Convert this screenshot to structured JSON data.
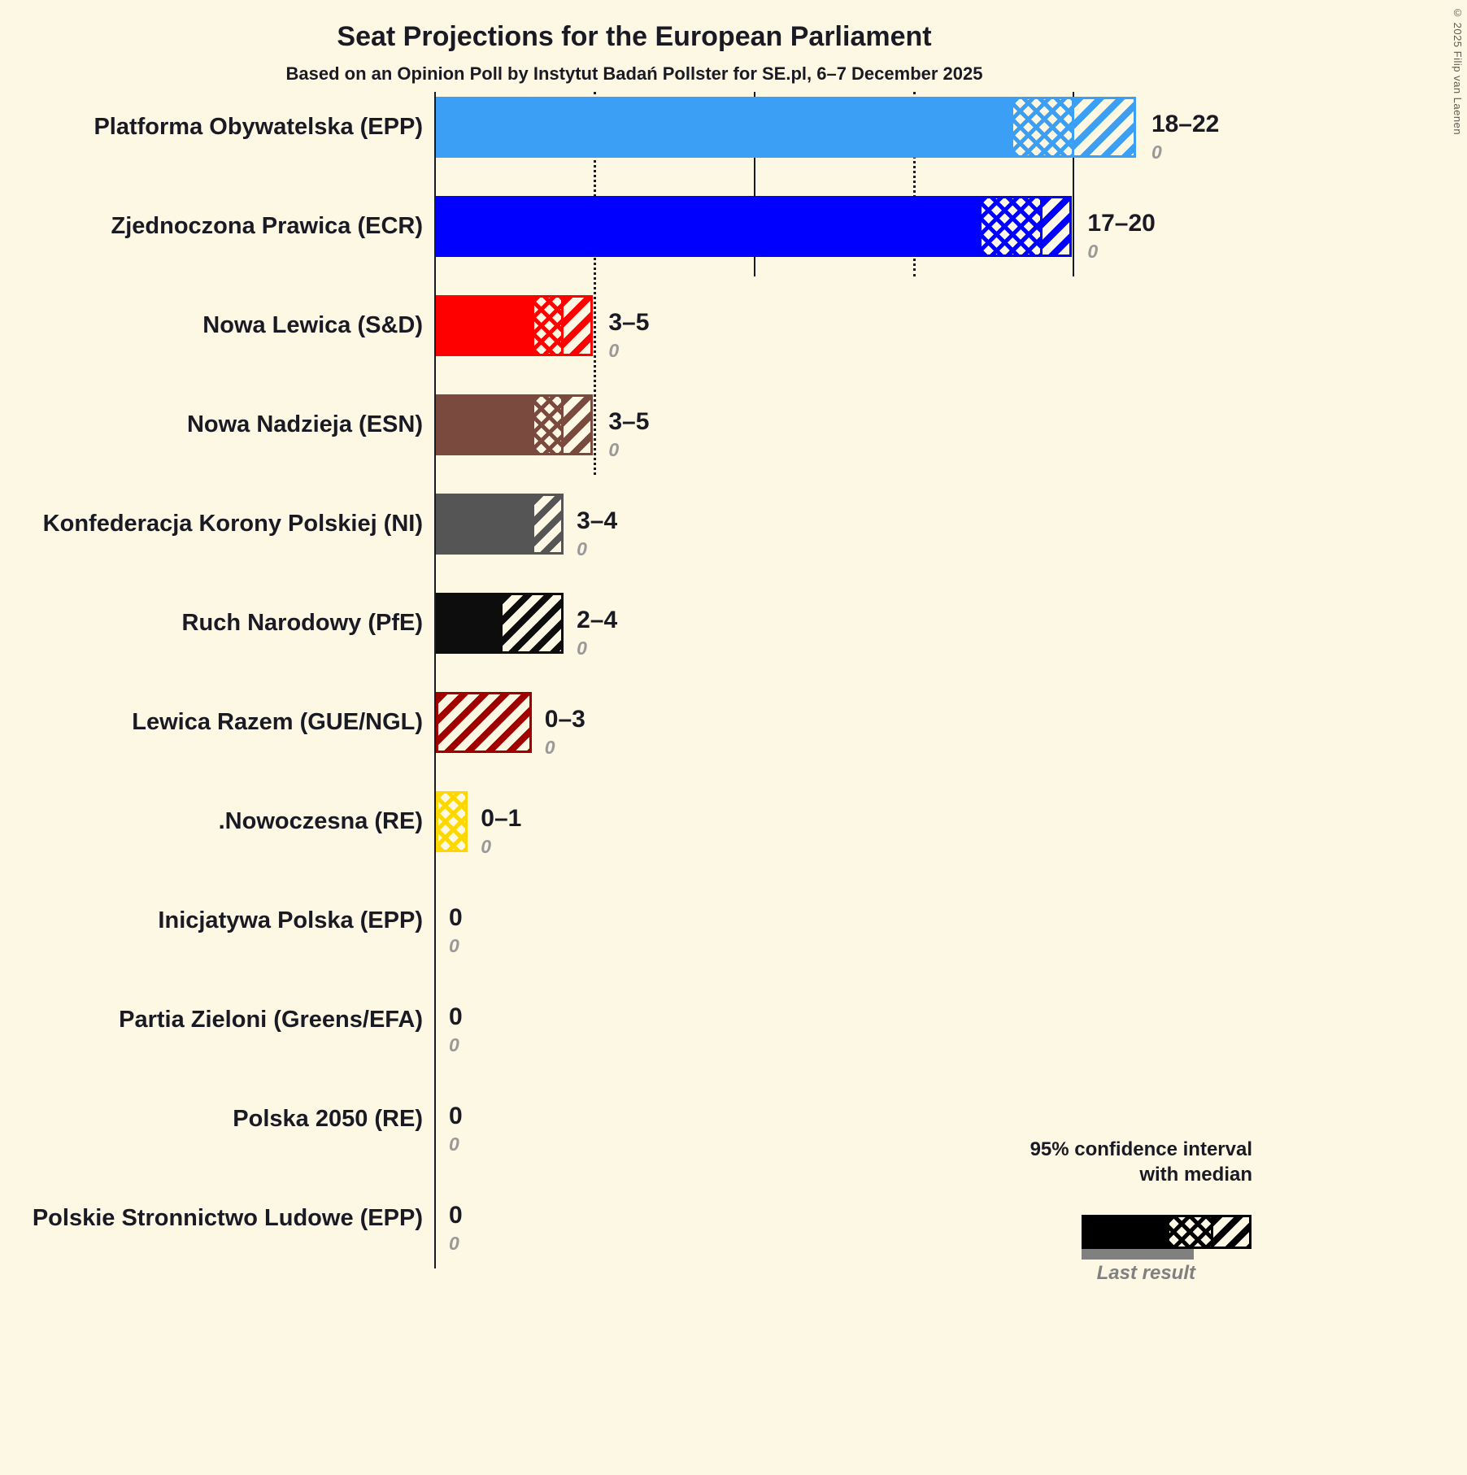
{
  "title": "Seat Projections for the European Parliament",
  "subtitle": "Based on an Opinion Poll by Instytut Badań Pollster for SE.pl, 6–7 December 2025",
  "copyright": "© 2025 Filip van Laenen",
  "colors": {
    "background": "#FDF8E3",
    "text": "#1A1A24",
    "axis": "#1A1A24",
    "last_result_text": "#999999"
  },
  "legend": {
    "line1": "95% confidence interval",
    "line2": "with median",
    "last_result_label": "Last result",
    "bar_color": "#000000",
    "last_result_color": "#808080"
  },
  "chart_data": {
    "type": "bar",
    "orientation": "horizontal",
    "unit": "seats",
    "xlim": [
      0,
      26
    ],
    "x_gridlines_solid": [
      10,
      20
    ],
    "x_gridlines_dotted": [
      5,
      15
    ],
    "parties": [
      {
        "label": "Platforma Obywatelska (EPP)",
        "ci_low": 18,
        "median": 20,
        "ci_high": 22,
        "range_text": "18–22",
        "last_result": "0",
        "color": "#3B9FF5"
      },
      {
        "label": "Zjednoczona Prawica (ECR)",
        "ci_low": 17,
        "median": 19,
        "ci_high": 20,
        "range_text": "17–20",
        "last_result": "0",
        "color": "#0000FF"
      },
      {
        "label": "Nowa Lewica (S&D)",
        "ci_low": 3,
        "median": 4,
        "ci_high": 5,
        "range_text": "3–5",
        "last_result": "0",
        "color": "#FF0000"
      },
      {
        "label": "Nowa Nadzieja (ESN)",
        "ci_low": 3,
        "median": 4,
        "ci_high": 5,
        "range_text": "3–5",
        "last_result": "0",
        "color": "#7A4A3E"
      },
      {
        "label": "Konfederacja Korony Polskiej (NI)",
        "ci_low": 3,
        "median": 3,
        "ci_high": 4,
        "range_text": "3–4",
        "last_result": "0",
        "color": "#555555"
      },
      {
        "label": "Ruch Narodowy (PfE)",
        "ci_low": 2,
        "median": 2,
        "ci_high": 4,
        "range_text": "2–4",
        "last_result": "0",
        "color": "#0D0D0D"
      },
      {
        "label": "Lewica Razem (GUE/NGL)",
        "ci_low": 0,
        "median": 0,
        "ci_high": 3,
        "range_text": "0–3",
        "last_result": "0",
        "color": "#A00000"
      },
      {
        "label": ".Nowoczesna (RE)",
        "ci_low": 0,
        "median": 1,
        "ci_high": 1,
        "range_text": "0–1",
        "last_result": "0",
        "color": "#FFD700"
      },
      {
        "label": "Inicjatywa Polska (EPP)",
        "ci_low": 0,
        "median": 0,
        "ci_high": 0,
        "range_text": "0",
        "last_result": "0",
        "color": null
      },
      {
        "label": "Partia Zieloni (Greens/EFA)",
        "ci_low": 0,
        "median": 0,
        "ci_high": 0,
        "range_text": "0",
        "last_result": "0",
        "color": null
      },
      {
        "label": "Polska 2050 (RE)",
        "ci_low": 0,
        "median": 0,
        "ci_high": 0,
        "range_text": "0",
        "last_result": "0",
        "color": null
      },
      {
        "label": "Polskie Stronnictwo Ludowe (EPP)",
        "ci_low": 0,
        "median": 0,
        "ci_high": 0,
        "range_text": "0",
        "last_result": "0",
        "color": null
      }
    ]
  }
}
